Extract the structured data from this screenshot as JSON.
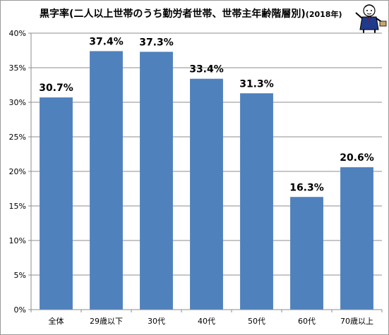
{
  "chart_data": {
    "type": "bar",
    "title": "黒字率(二人以上世帯のうち勤労者世帯、世帯主年齢階層別)",
    "title_suffix": "(2018年)",
    "categories": [
      "全体",
      "29歳以下",
      "30代",
      "40代",
      "50代",
      "60代",
      "70歳以上"
    ],
    "values": [
      30.7,
      37.4,
      37.3,
      33.4,
      31.3,
      16.3,
      20.6
    ],
    "data_labels": [
      "30.7%",
      "37.4%",
      "37.3%",
      "33.4%",
      "31.3%",
      "16.3%",
      "20.6%"
    ],
    "yticks": [
      "0%",
      "5%",
      "10%",
      "15%",
      "20%",
      "25%",
      "30%",
      "35%",
      "40%"
    ],
    "ylim": [
      0,
      40
    ],
    "xlabel": "",
    "ylabel": "",
    "grid": true,
    "bar_color": "#4f81bd"
  },
  "mascot_icon": "suit-character-mascot-icon"
}
